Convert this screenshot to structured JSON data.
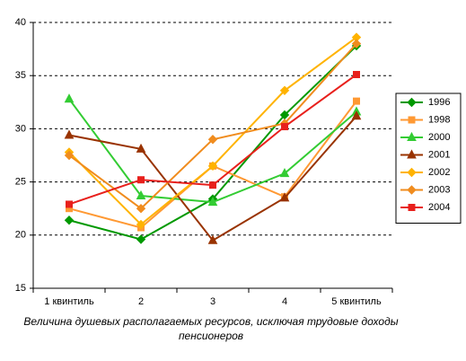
{
  "chart_data": {
    "type": "line",
    "x_label": "Величина душевых располагаемых ресурсов, исключая трудовые доходы пенсионеров",
    "categories": [
      "1 квинтиль",
      "2",
      "3",
      "4",
      "5 квинтиль"
    ],
    "ylim": [
      15,
      40
    ],
    "yticks": [
      15,
      20,
      25,
      30,
      35,
      40
    ],
    "grid": true,
    "legend": "right",
    "series": [
      {
        "name": "1996",
        "color": "#009900",
        "marker": "diamond",
        "values": [
          21.4,
          19.6,
          23.4,
          31.3,
          37.8
        ]
      },
      {
        "name": "1998",
        "color": "#ff9933",
        "marker": "square",
        "values": [
          22.5,
          20.7,
          26.5,
          23.6,
          32.6
        ]
      },
      {
        "name": "2000",
        "color": "#33cc33",
        "marker": "triangle",
        "values": [
          32.8,
          23.7,
          23.1,
          25.8,
          31.6
        ]
      },
      {
        "name": "2001",
        "color": "#993300",
        "marker": "triangle",
        "values": [
          29.4,
          28.1,
          19.5,
          23.5,
          31.2
        ]
      },
      {
        "name": "2002",
        "color": "#ffb300",
        "marker": "diamond",
        "values": [
          27.8,
          21.0,
          26.5,
          33.6,
          38.6
        ]
      },
      {
        "name": "2003",
        "color": "#f08c1e",
        "marker": "diamond",
        "values": [
          27.5,
          22.5,
          29.0,
          30.5,
          38.0
        ]
      },
      {
        "name": "2004",
        "color": "#e8201c",
        "marker": "square",
        "values": [
          22.9,
          25.2,
          24.7,
          30.2,
          35.1
        ]
      }
    ]
  }
}
